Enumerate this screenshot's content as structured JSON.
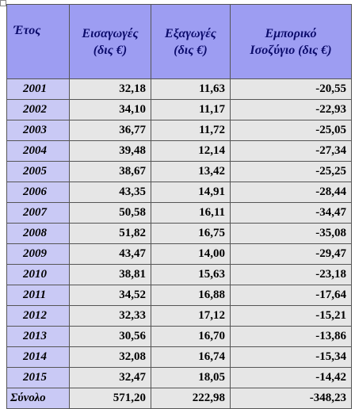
{
  "table": {
    "headers": [
      [
        "Έτος"
      ],
      [
        "Εισαγωγές",
        "(δις €)"
      ],
      [
        "Εξαγωγές",
        "(δις €)"
      ],
      [
        "Εμπορικό",
        "Ισοζύγιο (δις €)"
      ]
    ],
    "rows": [
      [
        "2001",
        "32,18",
        "11,63",
        "-20,55"
      ],
      [
        "2002",
        "34,10",
        "11,17",
        "-22,93"
      ],
      [
        "2003",
        "36,77",
        "11,72",
        "-25,05"
      ],
      [
        "2004",
        "39,48",
        "12,14",
        "-27,34"
      ],
      [
        "2005",
        "38,67",
        "13,42",
        "-25,25"
      ],
      [
        "2006",
        "43,35",
        "14,91",
        "-28,44"
      ],
      [
        "2007",
        "50,58",
        "16,11",
        "-34,47"
      ],
      [
        "2008",
        "51,82",
        "16,75",
        "-35,08"
      ],
      [
        "2009",
        "43,47",
        "14,00",
        "-29,47"
      ],
      [
        "2010",
        "38,81",
        "15,63",
        "-23,18"
      ],
      [
        "2011",
        "34,52",
        "16,88",
        "-17,64"
      ],
      [
        "2012",
        "32,33",
        "17,12",
        "-15,21"
      ],
      [
        "2013",
        "30,56",
        "16,70",
        "-13,86"
      ],
      [
        "2014",
        "32,08",
        "16,74",
        "-15,34"
      ],
      [
        "2015",
        "32,47",
        "18,05",
        "-14,42"
      ]
    ],
    "total": [
      "Σύνολο",
      "571,20",
      "222,98",
      "-348,23"
    ]
  }
}
